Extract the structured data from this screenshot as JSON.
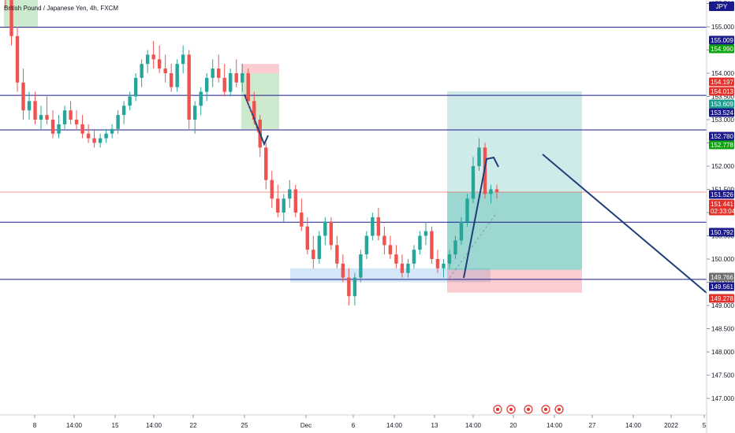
{
  "header": {
    "symbol_title": "British Pound / Japanese Yen, 4h, FXCM",
    "currency": "JPY"
  },
  "colors": {
    "bull": "#26a69a",
    "bear": "#ef5350",
    "level_line": "#1a1a8c",
    "trend_line": "#1f3f7a",
    "navy_badge": "#1a1a8c",
    "green_badge": "#0ca30c",
    "red_badge": "#e0312b",
    "teal_badge": "#1b9c8f",
    "gray_badge": "#6e6e6e"
  },
  "chart_data": {
    "type": "candlestick",
    "symbol": "GBPJPY",
    "timeframe": "4h",
    "y_range": [
      146.8,
      156.3
    ],
    "y_ticks": [
      "155.500",
      "155.000",
      "154.500",
      "154.000",
      "153.500",
      "153.000",
      "152.500",
      "152.000",
      "151.500",
      "151.000",
      "150.500",
      "150.000",
      "149.500",
      "149.000",
      "148.500",
      "148.000",
      "147.500",
      "147.000"
    ],
    "x_tick_labels": [
      "8",
      "14:00",
      "15",
      "14:00",
      "22",
      "25",
      "Dec",
      "6",
      "14:00",
      "13",
      "14:00",
      "20",
      "14:00",
      "27",
      "14:00",
      "2022",
      "5"
    ],
    "horizontal_levels": [
      156.0,
      154.99,
      153.524,
      152.78,
      151.441,
      150.792,
      149.561
    ],
    "price_badges": [
      {
        "text": "155.009",
        "kind": "navy"
      },
      {
        "text": "154.990",
        "kind": "green"
      },
      {
        "text": "154.197",
        "kind": "red"
      },
      {
        "text": "154.013",
        "kind": "red"
      },
      {
        "text": "153.609",
        "kind": "teal"
      },
      {
        "text": "153.524",
        "kind": "navy"
      },
      {
        "text": "152.780",
        "kind": "navy"
      },
      {
        "text": "152.778",
        "kind": "green"
      },
      {
        "text": "151.526",
        "kind": "navy"
      },
      {
        "text": "151.441",
        "kind": "red"
      },
      {
        "text": "02:33:04",
        "kind": "red"
      },
      {
        "text": "150.792",
        "kind": "navy"
      },
      {
        "text": "149.766",
        "kind": "gray"
      },
      {
        "text": "149.561",
        "kind": "navy"
      },
      {
        "text": "149.278",
        "kind": "red"
      }
    ],
    "candles": [
      {
        "o": 156.1,
        "h": 156.3,
        "l": 155.4,
        "c": 155.6
      },
      {
        "o": 155.6,
        "h": 155.7,
        "l": 154.6,
        "c": 154.8
      },
      {
        "o": 154.8,
        "h": 155.0,
        "l": 153.6,
        "c": 153.8
      },
      {
        "o": 153.8,
        "h": 154.1,
        "l": 153.0,
        "c": 153.2
      },
      {
        "o": 153.2,
        "h": 153.6,
        "l": 153.0,
        "c": 153.4
      },
      {
        "o": 153.4,
        "h": 153.6,
        "l": 152.9,
        "c": 153.0
      },
      {
        "o": 153.0,
        "h": 153.3,
        "l": 152.8,
        "c": 153.1
      },
      {
        "o": 153.1,
        "h": 153.5,
        "l": 152.9,
        "c": 153.0
      },
      {
        "o": 153.0,
        "h": 153.2,
        "l": 152.6,
        "c": 152.7
      },
      {
        "o": 152.7,
        "h": 153.1,
        "l": 152.6,
        "c": 152.9
      },
      {
        "o": 152.9,
        "h": 153.3,
        "l": 152.8,
        "c": 153.2
      },
      {
        "o": 153.2,
        "h": 153.4,
        "l": 152.9,
        "c": 153.0
      },
      {
        "o": 153.0,
        "h": 153.2,
        "l": 152.8,
        "c": 152.9
      },
      {
        "o": 152.9,
        "h": 153.1,
        "l": 152.6,
        "c": 152.7
      },
      {
        "o": 152.7,
        "h": 152.9,
        "l": 152.5,
        "c": 152.6
      },
      {
        "o": 152.6,
        "h": 152.8,
        "l": 152.4,
        "c": 152.5
      },
      {
        "o": 152.5,
        "h": 152.7,
        "l": 152.4,
        "c": 152.6
      },
      {
        "o": 152.6,
        "h": 152.8,
        "l": 152.5,
        "c": 152.7
      },
      {
        "o": 152.7,
        "h": 152.9,
        "l": 152.6,
        "c": 152.8
      },
      {
        "o": 152.8,
        "h": 153.2,
        "l": 152.7,
        "c": 153.1
      },
      {
        "o": 153.1,
        "h": 153.4,
        "l": 152.9,
        "c": 153.3
      },
      {
        "o": 153.3,
        "h": 153.6,
        "l": 153.2,
        "c": 153.5
      },
      {
        "o": 153.5,
        "h": 154.0,
        "l": 153.4,
        "c": 153.9
      },
      {
        "o": 153.9,
        "h": 154.3,
        "l": 153.7,
        "c": 154.2
      },
      {
        "o": 154.2,
        "h": 154.5,
        "l": 154.0,
        "c": 154.4
      },
      {
        "o": 154.4,
        "h": 154.7,
        "l": 154.1,
        "c": 154.3
      },
      {
        "o": 154.3,
        "h": 154.6,
        "l": 154.0,
        "c": 154.1
      },
      {
        "o": 154.1,
        "h": 154.4,
        "l": 153.8,
        "c": 154.0
      },
      {
        "o": 154.0,
        "h": 154.2,
        "l": 153.6,
        "c": 153.7
      },
      {
        "o": 153.7,
        "h": 154.3,
        "l": 153.6,
        "c": 154.2
      },
      {
        "o": 154.2,
        "h": 154.6,
        "l": 154.0,
        "c": 154.4
      },
      {
        "o": 154.4,
        "h": 154.5,
        "l": 152.8,
        "c": 153.0
      },
      {
        "o": 153.0,
        "h": 153.4,
        "l": 152.7,
        "c": 153.3
      },
      {
        "o": 153.3,
        "h": 153.7,
        "l": 153.1,
        "c": 153.6
      },
      {
        "o": 153.6,
        "h": 154.0,
        "l": 153.4,
        "c": 153.9
      },
      {
        "o": 153.9,
        "h": 154.3,
        "l": 153.7,
        "c": 154.1
      },
      {
        "o": 154.1,
        "h": 154.4,
        "l": 153.8,
        "c": 153.9
      },
      {
        "o": 153.9,
        "h": 154.2,
        "l": 153.5,
        "c": 153.6
      },
      {
        "o": 153.6,
        "h": 154.1,
        "l": 153.5,
        "c": 154.0
      },
      {
        "o": 154.0,
        "h": 154.3,
        "l": 153.7,
        "c": 153.8
      },
      {
        "o": 153.8,
        "h": 154.2,
        "l": 153.6,
        "c": 154.0
      },
      {
        "o": 154.0,
        "h": 154.1,
        "l": 153.3,
        "c": 153.4
      },
      {
        "o": 153.4,
        "h": 153.6,
        "l": 152.9,
        "c": 153.0
      },
      {
        "o": 153.0,
        "h": 153.1,
        "l": 152.2,
        "c": 152.4
      },
      {
        "o": 152.4,
        "h": 152.5,
        "l": 151.5,
        "c": 151.7
      },
      {
        "o": 151.7,
        "h": 151.9,
        "l": 151.1,
        "c": 151.3
      },
      {
        "o": 151.3,
        "h": 151.6,
        "l": 150.9,
        "c": 151.0
      },
      {
        "o": 151.0,
        "h": 151.4,
        "l": 150.8,
        "c": 151.3
      },
      {
        "o": 151.3,
        "h": 151.7,
        "l": 151.1,
        "c": 151.5
      },
      {
        "o": 151.5,
        "h": 151.6,
        "l": 150.9,
        "c": 151.0
      },
      {
        "o": 151.0,
        "h": 151.3,
        "l": 150.6,
        "c": 150.7
      },
      {
        "o": 150.7,
        "h": 150.9,
        "l": 150.1,
        "c": 150.2
      },
      {
        "o": 150.2,
        "h": 150.5,
        "l": 149.8,
        "c": 150.0
      },
      {
        "o": 150.0,
        "h": 150.6,
        "l": 149.9,
        "c": 150.5
      },
      {
        "o": 150.5,
        "h": 150.9,
        "l": 150.3,
        "c": 150.8
      },
      {
        "o": 150.8,
        "h": 150.9,
        "l": 150.2,
        "c": 150.3
      },
      {
        "o": 150.3,
        "h": 150.5,
        "l": 149.8,
        "c": 149.9
      },
      {
        "o": 149.9,
        "h": 150.1,
        "l": 149.5,
        "c": 149.6
      },
      {
        "o": 149.6,
        "h": 149.8,
        "l": 149.0,
        "c": 149.2
      },
      {
        "o": 149.2,
        "h": 149.7,
        "l": 149.0,
        "c": 149.6
      },
      {
        "o": 149.6,
        "h": 150.2,
        "l": 149.5,
        "c": 150.1
      },
      {
        "o": 150.1,
        "h": 150.6,
        "l": 150.0,
        "c": 150.5
      },
      {
        "o": 150.5,
        "h": 151.0,
        "l": 150.4,
        "c": 150.9
      },
      {
        "o": 150.9,
        "h": 151.1,
        "l": 150.4,
        "c": 150.5
      },
      {
        "o": 150.5,
        "h": 150.7,
        "l": 150.1,
        "c": 150.3
      },
      {
        "o": 150.3,
        "h": 150.5,
        "l": 150.0,
        "c": 150.1
      },
      {
        "o": 150.1,
        "h": 150.3,
        "l": 149.8,
        "c": 149.9
      },
      {
        "o": 149.9,
        "h": 150.1,
        "l": 149.6,
        "c": 149.7
      },
      {
        "o": 149.7,
        "h": 150.0,
        "l": 149.6,
        "c": 149.9
      },
      {
        "o": 149.9,
        "h": 150.3,
        "l": 149.8,
        "c": 150.2
      },
      {
        "o": 150.2,
        "h": 150.6,
        "l": 150.1,
        "c": 150.5
      },
      {
        "o": 150.5,
        "h": 150.8,
        "l": 150.3,
        "c": 150.6
      },
      {
        "o": 150.6,
        "h": 150.7,
        "l": 149.9,
        "c": 150.0
      },
      {
        "o": 150.0,
        "h": 150.2,
        "l": 149.7,
        "c": 149.8
      },
      {
        "o": 149.8,
        "h": 150.0,
        "l": 149.6,
        "c": 149.9
      },
      {
        "o": 149.9,
        "h": 150.2,
        "l": 149.8,
        "c": 150.1
      },
      {
        "o": 150.1,
        "h": 150.5,
        "l": 150.0,
        "c": 150.4
      },
      {
        "o": 150.4,
        "h": 150.9,
        "l": 150.3,
        "c": 150.8
      },
      {
        "o": 150.8,
        "h": 151.4,
        "l": 150.7,
        "c": 151.3
      },
      {
        "o": 151.3,
        "h": 152.2,
        "l": 151.2,
        "c": 152.0
      },
      {
        "o": 152.0,
        "h": 152.6,
        "l": 151.9,
        "c": 152.4
      },
      {
        "o": 152.4,
        "h": 152.5,
        "l": 151.3,
        "c": 151.4
      },
      {
        "o": 151.4,
        "h": 151.6,
        "l": 151.2,
        "c": 151.5
      },
      {
        "o": 151.5,
        "h": 151.6,
        "l": 151.3,
        "c": 151.441
      }
    ],
    "zones": [
      {
        "name": "top-left-green",
        "y1": 155.0,
        "y2": 156.2,
        "kind": "green"
      },
      {
        "name": "nov25-red",
        "y1": 154.0,
        "y2": 154.2,
        "kind": "red"
      },
      {
        "name": "nov25-green",
        "y1": 152.8,
        "y2": 154.0,
        "kind": "green"
      },
      {
        "name": "demand-zone",
        "y1": 149.5,
        "y2": 149.8,
        "kind": "blue"
      },
      {
        "name": "long-target",
        "y1": 151.44,
        "y2": 153.609,
        "kind": "teal"
      },
      {
        "name": "long-entry",
        "y1": 149.766,
        "y2": 151.44,
        "kind": "teal-dark"
      },
      {
        "name": "long-stop",
        "y1": 149.278,
        "y2": 149.766,
        "kind": "red"
      }
    ]
  }
}
